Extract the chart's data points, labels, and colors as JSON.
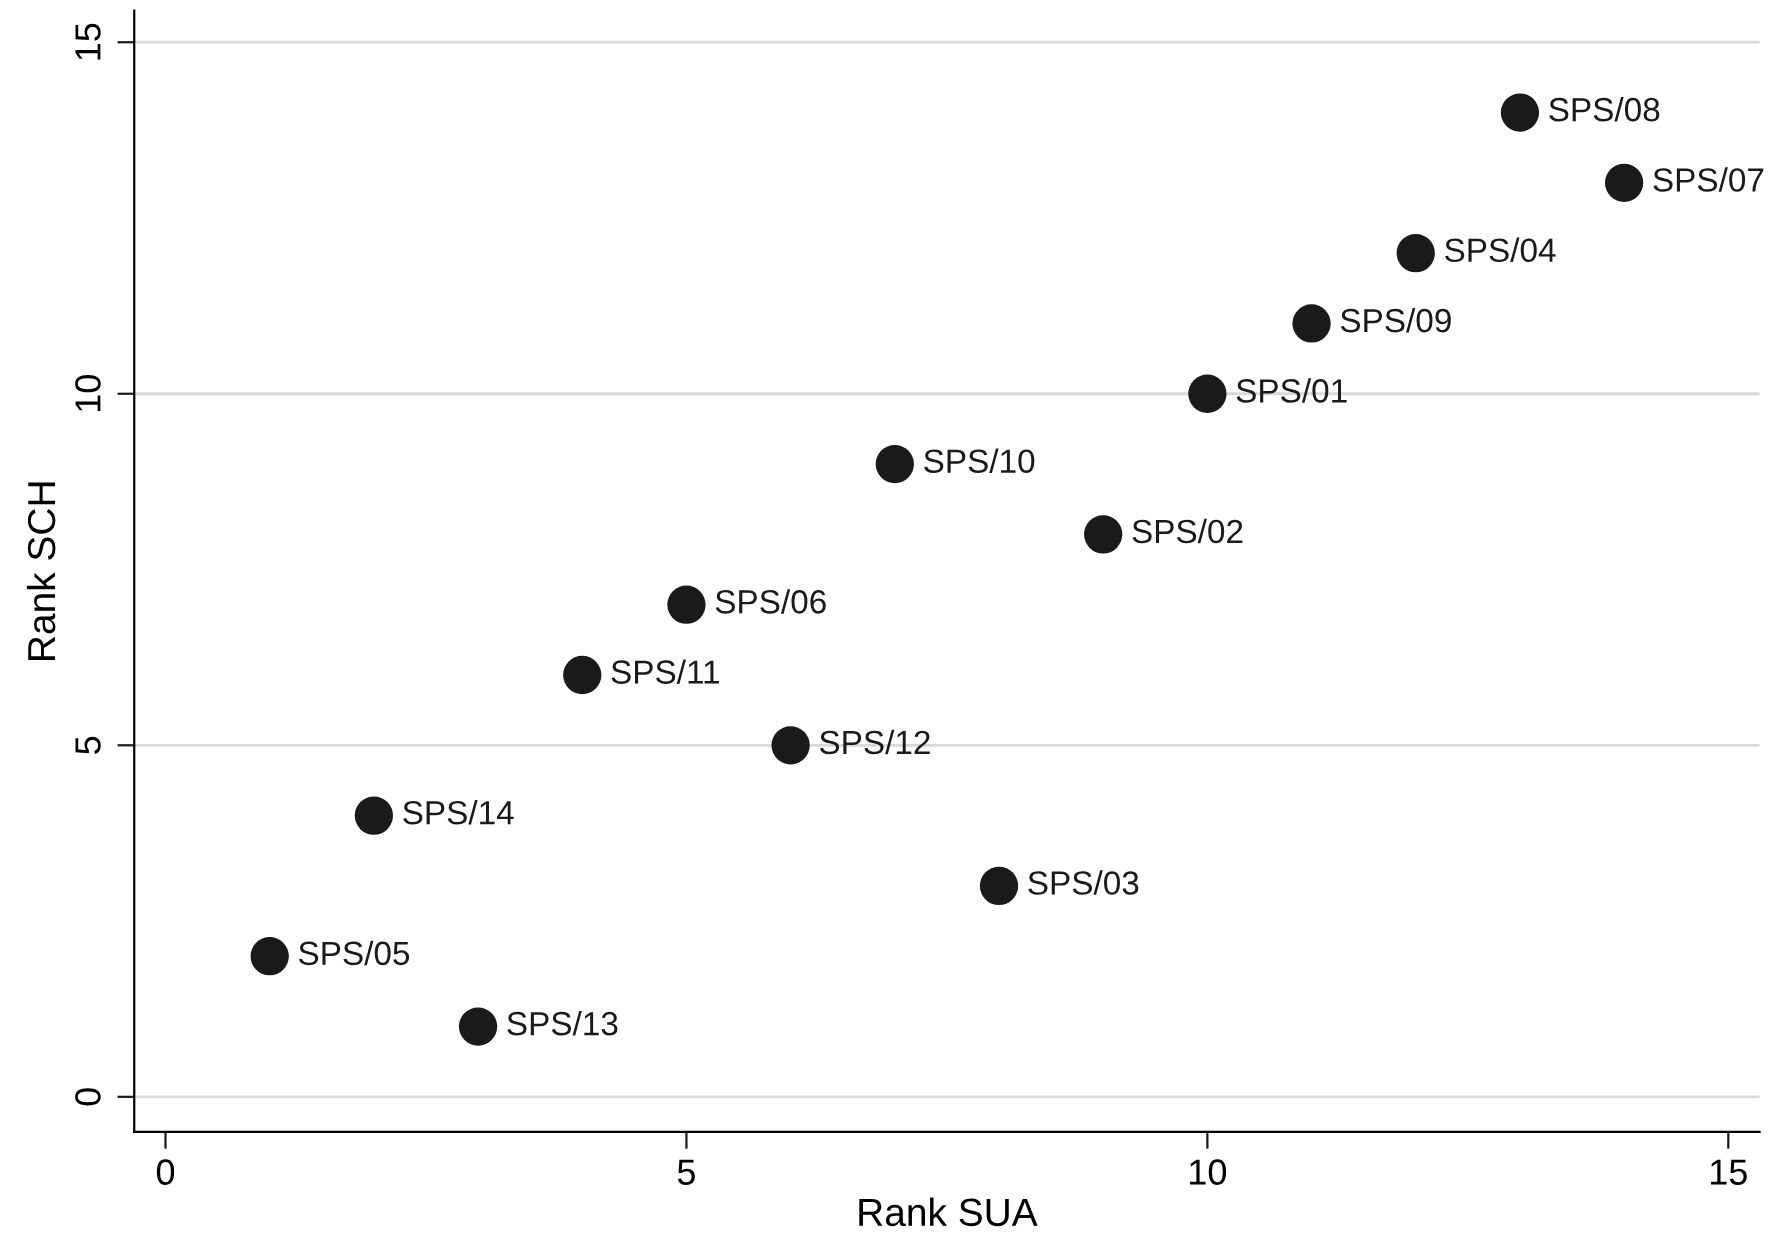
{
  "chart_data": {
    "type": "scatter",
    "xlabel": "Rank SUA",
    "ylabel": "Rank SCH",
    "x": [
      1,
      2,
      3,
      4,
      5,
      6,
      7,
      8,
      9,
      10,
      11,
      12,
      13,
      14
    ],
    "series": [
      {
        "color": "#1a1a1a",
        "values": [
          2,
          4,
          1,
          6,
          7,
          5,
          9,
          3,
          8,
          10,
          11,
          12,
          14,
          13
        ]
      }
    ],
    "annotations": [
      {
        "text": "SPS/05",
        "x": 1,
        "y": 2
      },
      {
        "text": "SPS/14",
        "x": 2,
        "y": 4
      },
      {
        "text": "SPS/13",
        "x": 3,
        "y": 1
      },
      {
        "text": "SPS/11",
        "x": 4,
        "y": 6
      },
      {
        "text": "SPS/06",
        "x": 5,
        "y": 7
      },
      {
        "text": "SPS/12",
        "x": 6,
        "y": 5
      },
      {
        "text": "SPS/10",
        "x": 7,
        "y": 9
      },
      {
        "text": "SPS/03",
        "x": 8,
        "y": 3
      },
      {
        "text": "SPS/02",
        "x": 9,
        "y": 8
      },
      {
        "text": "SPS/01",
        "x": 10,
        "y": 10
      },
      {
        "text": "SPS/09",
        "x": 11,
        "y": 11
      },
      {
        "text": "SPS/04",
        "x": 12,
        "y": 12
      },
      {
        "text": "SPS/08",
        "x": 13,
        "y": 14
      },
      {
        "text": "SPS/07",
        "x": 14,
        "y": 13
      }
    ],
    "xlim": [
      -0.3,
      15.3
    ],
    "ylim": [
      -0.5,
      15.45
    ],
    "xticks": [
      0,
      5,
      10,
      15
    ],
    "yticks": [
      0,
      5,
      10,
      15
    ],
    "grid": "y",
    "marker": "circle",
    "legend": false
  }
}
